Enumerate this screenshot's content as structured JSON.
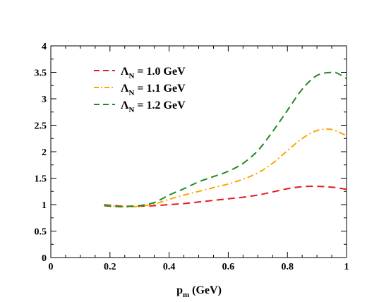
{
  "chart_data": {
    "type": "line",
    "title": "",
    "xlabel": {
      "symbol": "p",
      "subscript": "m",
      "unit": " (GeV)"
    },
    "ylabel": "",
    "xlim": [
      0,
      1
    ],
    "ylim": [
      0,
      4
    ],
    "xticks": [
      0,
      0.2,
      0.4,
      0.6,
      0.8,
      1
    ],
    "xtick_labels": [
      "0",
      "0.2",
      "0.4",
      "0.6",
      "0.8",
      "1"
    ],
    "yticks": [
      0,
      0.5,
      1,
      1.5,
      2,
      2.5,
      3,
      3.5,
      4
    ],
    "ytick_labels": [
      "0",
      "0.5",
      "1",
      "1.5",
      "2",
      "2.5",
      "3",
      "3.5",
      "4"
    ],
    "grid": false,
    "legend_position": "top-left",
    "series": [
      {
        "name": "Λ_N = 1.0 GeV",
        "legend": {
          "symbol": "Λ",
          "subscript": "N",
          "value": " = 1.0 GeV"
        },
        "color": "#e41a1c",
        "style": "dashed",
        "x": [
          0.18,
          0.2,
          0.22,
          0.25,
          0.27,
          0.3,
          0.35,
          0.4,
          0.45,
          0.5,
          0.55,
          0.6,
          0.65,
          0.7,
          0.75,
          0.8,
          0.85,
          0.9,
          0.95,
          1.0
        ],
        "y": [
          1.0,
          0.99,
          0.98,
          0.97,
          0.97,
          0.97,
          0.98,
          1.0,
          1.02,
          1.05,
          1.08,
          1.11,
          1.14,
          1.18,
          1.24,
          1.3,
          1.34,
          1.345,
          1.33,
          1.29
        ]
      },
      {
        "name": "Λ_N = 1.1 GeV",
        "legend": {
          "symbol": "Λ",
          "subscript": "N",
          "value": " = 1.1 GeV"
        },
        "color": "#ffa500",
        "style": "dashdot",
        "x": [
          0.18,
          0.2,
          0.22,
          0.25,
          0.27,
          0.3,
          0.35,
          0.4,
          0.45,
          0.5,
          0.55,
          0.6,
          0.65,
          0.7,
          0.75,
          0.8,
          0.85,
          0.9,
          0.95,
          1.0
        ],
        "y": [
          0.99,
          0.98,
          0.97,
          0.96,
          0.96,
          0.97,
          1.01,
          1.1,
          1.18,
          1.25,
          1.32,
          1.39,
          1.48,
          1.6,
          1.78,
          2.02,
          2.25,
          2.4,
          2.42,
          2.3
        ]
      },
      {
        "name": "Λ_N = 1.2 GeV",
        "legend": {
          "symbol": "Λ",
          "subscript": "N",
          "value": " = 1.2 GeV"
        },
        "color": "#1e8b22",
        "style": "dashed",
        "x": [
          0.18,
          0.2,
          0.22,
          0.25,
          0.27,
          0.3,
          0.35,
          0.4,
          0.45,
          0.5,
          0.55,
          0.6,
          0.65,
          0.7,
          0.75,
          0.8,
          0.85,
          0.9,
          0.95,
          0.97,
          1.0
        ],
        "y": [
          0.98,
          0.97,
          0.965,
          0.96,
          0.97,
          0.98,
          1.04,
          1.18,
          1.3,
          1.43,
          1.53,
          1.63,
          1.78,
          2.02,
          2.38,
          2.78,
          3.18,
          3.44,
          3.5,
          3.48,
          3.38
        ]
      }
    ]
  }
}
